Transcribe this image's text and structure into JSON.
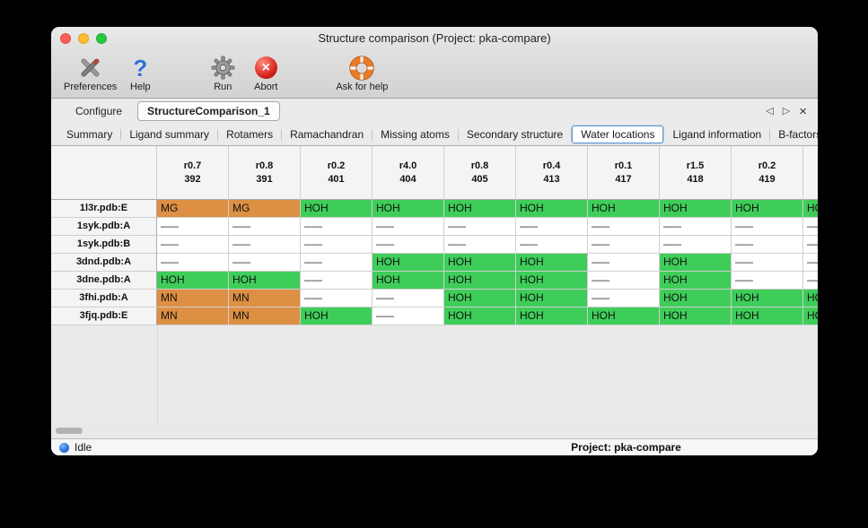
{
  "window": {
    "title": "Structure comparison (Project: pka-compare)"
  },
  "toolbar": {
    "items": [
      {
        "label": "Preferences",
        "icon": "preferences-tools-icon"
      },
      {
        "label": "Help",
        "icon": "help-question-icon"
      },
      {
        "label": "Run",
        "icon": "run-gear-icon"
      },
      {
        "label": "Abort",
        "icon": "abort-icon"
      },
      {
        "label": "Ask for help",
        "icon": "lifebuoy-icon"
      }
    ]
  },
  "tab_nav": {
    "prev": "◁",
    "next": "▷",
    "close": "×"
  },
  "tabs": {
    "main": [
      {
        "label": "Configure",
        "active": false
      },
      {
        "label": "StructureComparison_1",
        "active": true
      }
    ],
    "sub": [
      {
        "label": "Summary",
        "selected": false
      },
      {
        "label": "Ligand summary",
        "selected": false
      },
      {
        "label": "Rotamers",
        "selected": false
      },
      {
        "label": "Ramachandran",
        "selected": false
      },
      {
        "label": "Missing atoms",
        "selected": false
      },
      {
        "label": "Secondary structure",
        "selected": false
      },
      {
        "label": "Water locations",
        "selected": true
      },
      {
        "label": "Ligand information",
        "selected": false
      },
      {
        "label": "B-factors",
        "selected": false
      }
    ]
  },
  "table": {
    "col_headers": [
      [
        "r0.7",
        "392"
      ],
      [
        "r0.8",
        "391"
      ],
      [
        "r0.2",
        "401"
      ],
      [
        "r4.0",
        "404"
      ],
      [
        "r0.8",
        "405"
      ],
      [
        "r0.4",
        "413"
      ],
      [
        "r0.1",
        "417"
      ],
      [
        "r1.5",
        "418"
      ],
      [
        "r0.2",
        "419"
      ],
      [
        "",
        ""
      ]
    ],
    "rows": [
      {
        "name": "1l3r.pdb:E",
        "cells": [
          {
            "text": "MG",
            "kind": "metal"
          },
          {
            "text": "MG",
            "kind": "metal"
          },
          {
            "text": "HOH",
            "kind": "water"
          },
          {
            "text": "HOH",
            "kind": "water"
          },
          {
            "text": "HOH",
            "kind": "water"
          },
          {
            "text": "HOH",
            "kind": "water"
          },
          {
            "text": "HOH",
            "kind": "water"
          },
          {
            "text": "HOH",
            "kind": "water"
          },
          {
            "text": "HOH",
            "kind": "water"
          },
          {
            "text": "HOH",
            "kind": "water"
          }
        ]
      },
      {
        "name": "1syk.pdb:A",
        "cells": [
          {
            "text": "–––",
            "kind": "none"
          },
          {
            "text": "–––",
            "kind": "none"
          },
          {
            "text": "–––",
            "kind": "none"
          },
          {
            "text": "–––",
            "kind": "none"
          },
          {
            "text": "–––",
            "kind": "none"
          },
          {
            "text": "–––",
            "kind": "none"
          },
          {
            "text": "–––",
            "kind": "none"
          },
          {
            "text": "–––",
            "kind": "none"
          },
          {
            "text": "–––",
            "kind": "none"
          },
          {
            "text": "–––",
            "kind": "none"
          }
        ]
      },
      {
        "name": "1syk.pdb:B",
        "cells": [
          {
            "text": "–––",
            "kind": "none"
          },
          {
            "text": "–––",
            "kind": "none"
          },
          {
            "text": "–––",
            "kind": "none"
          },
          {
            "text": "–––",
            "kind": "none"
          },
          {
            "text": "–––",
            "kind": "none"
          },
          {
            "text": "–––",
            "kind": "none"
          },
          {
            "text": "–––",
            "kind": "none"
          },
          {
            "text": "–––",
            "kind": "none"
          },
          {
            "text": "–––",
            "kind": "none"
          },
          {
            "text": "–––",
            "kind": "none"
          }
        ]
      },
      {
        "name": "3dnd.pdb:A",
        "cells": [
          {
            "text": "–––",
            "kind": "none"
          },
          {
            "text": "–––",
            "kind": "none"
          },
          {
            "text": "–––",
            "kind": "none"
          },
          {
            "text": "HOH",
            "kind": "water"
          },
          {
            "text": "HOH",
            "kind": "water"
          },
          {
            "text": "HOH",
            "kind": "water"
          },
          {
            "text": "–––",
            "kind": "none"
          },
          {
            "text": "HOH",
            "kind": "water"
          },
          {
            "text": "–––",
            "kind": "none"
          },
          {
            "text": "–––",
            "kind": "none"
          }
        ]
      },
      {
        "name": "3dne.pdb:A",
        "cells": [
          {
            "text": "HOH",
            "kind": "water"
          },
          {
            "text": "HOH",
            "kind": "water"
          },
          {
            "text": "–––",
            "kind": "none"
          },
          {
            "text": "HOH",
            "kind": "water"
          },
          {
            "text": "HOH",
            "kind": "water"
          },
          {
            "text": "HOH",
            "kind": "water"
          },
          {
            "text": "–––",
            "kind": "none"
          },
          {
            "text": "HOH",
            "kind": "water"
          },
          {
            "text": "–––",
            "kind": "none"
          },
          {
            "text": "–––",
            "kind": "none"
          }
        ]
      },
      {
        "name": "3fhi.pdb:A",
        "cells": [
          {
            "text": "MN",
            "kind": "metal"
          },
          {
            "text": "MN",
            "kind": "metal"
          },
          {
            "text": "–––",
            "kind": "none"
          },
          {
            "text": "–––",
            "kind": "none"
          },
          {
            "text": "HOH",
            "kind": "water"
          },
          {
            "text": "HOH",
            "kind": "water"
          },
          {
            "text": "–––",
            "kind": "none"
          },
          {
            "text": "HOH",
            "kind": "water"
          },
          {
            "text": "HOH",
            "kind": "water"
          },
          {
            "text": "HOH",
            "kind": "water"
          }
        ]
      },
      {
        "name": "3fjq.pdb:E",
        "cells": [
          {
            "text": "MN",
            "kind": "metal"
          },
          {
            "text": "MN",
            "kind": "metal"
          },
          {
            "text": "HOH",
            "kind": "water"
          },
          {
            "text": "–––",
            "kind": "none"
          },
          {
            "text": "HOH",
            "kind": "water"
          },
          {
            "text": "HOH",
            "kind": "water"
          },
          {
            "text": "HOH",
            "kind": "water"
          },
          {
            "text": "HOH",
            "kind": "water"
          },
          {
            "text": "HOH",
            "kind": "water"
          },
          {
            "text": "HOH",
            "kind": "water"
          }
        ]
      }
    ]
  },
  "statusbar": {
    "icon": "status-dot-icon",
    "status": "Idle",
    "project": "Project: pka-compare"
  },
  "colors": {
    "water_present": "#3fcd5a",
    "metal_ion": "#dd8f43",
    "selected_tab_border": "#5c95d5",
    "status_dot_blue": "#1b66d6",
    "abort_red": "#d8281c",
    "lifebuoy_orange": "#e97c2a",
    "traffic_red": "#ff5f57",
    "traffic_yellow": "#febc2e",
    "traffic_green": "#28c840"
  }
}
